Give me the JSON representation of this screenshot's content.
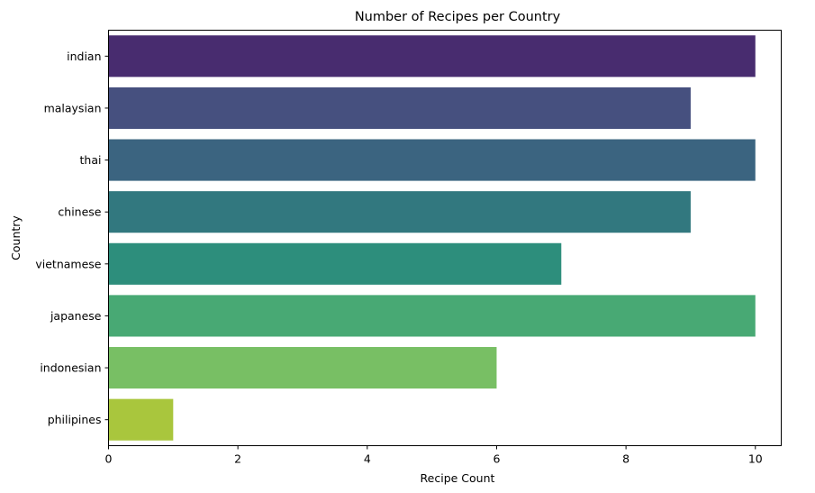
{
  "chart_data": {
    "type": "bar",
    "orientation": "horizontal",
    "title": "Number of Recipes per Country",
    "xlabel": "Recipe Count",
    "ylabel": "Country",
    "categories": [
      "indian",
      "malaysian",
      "thai",
      "chinese",
      "vietnamese",
      "japanese",
      "indonesian",
      "philipines"
    ],
    "values": [
      10,
      9,
      10,
      9,
      7,
      10,
      6,
      1
    ],
    "colors": [
      "#482c6f",
      "#46507f",
      "#3b6480",
      "#32787f",
      "#2d8e7c",
      "#48a974",
      "#78bf64",
      "#a9c63d"
    ],
    "xlim": [
      0,
      10.4
    ],
    "xticks": [
      0,
      2,
      4,
      6,
      8,
      10
    ],
    "grid": false,
    "legend": false
  }
}
